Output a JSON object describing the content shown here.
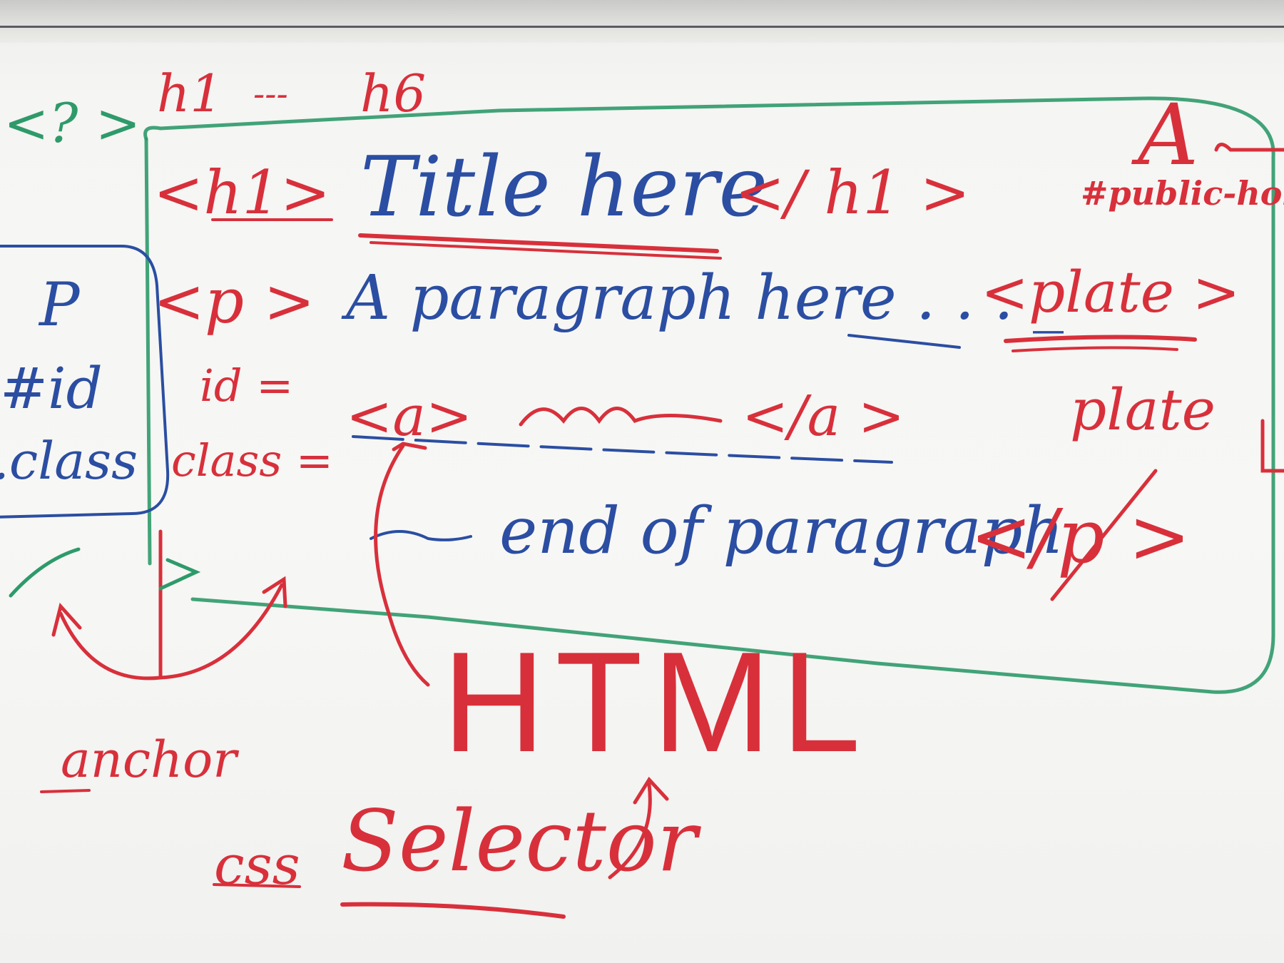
{
  "colors": {
    "red": "#d8303b",
    "blue": "#2b4ea2",
    "green": "#2e9a6a",
    "board": "#f6f6f4"
  },
  "heading_range": {
    "start": "h1",
    "dash": "---",
    "end": "h6"
  },
  "question_tag": "<? >",
  "title_line": {
    "open_tag": "<h1>",
    "text": "Title here",
    "close_tag": "</ h1 >"
  },
  "paragraph_line": {
    "open_tag": "<p >",
    "text": "A paragraph here . . . _"
  },
  "anchor_line": {
    "open_tag": "<a>",
    "close_tag": "</a >"
  },
  "end_line": {
    "text": "end of paragraph",
    "close_tag": "</p >"
  },
  "attributes": {
    "id": "id =",
    "class": "class ="
  },
  "selector_box": {
    "p": "P",
    "id": "#id",
    "class": ".class"
  },
  "right_notes": {
    "big_a": "A",
    "public_holiday": "#public-holida",
    "plate_tag": "<plate >",
    "plate_text": "plate"
  },
  "big_title": "HTML",
  "anchor_label": "anchor",
  "css_label": "css",
  "selector_label": "Selector"
}
